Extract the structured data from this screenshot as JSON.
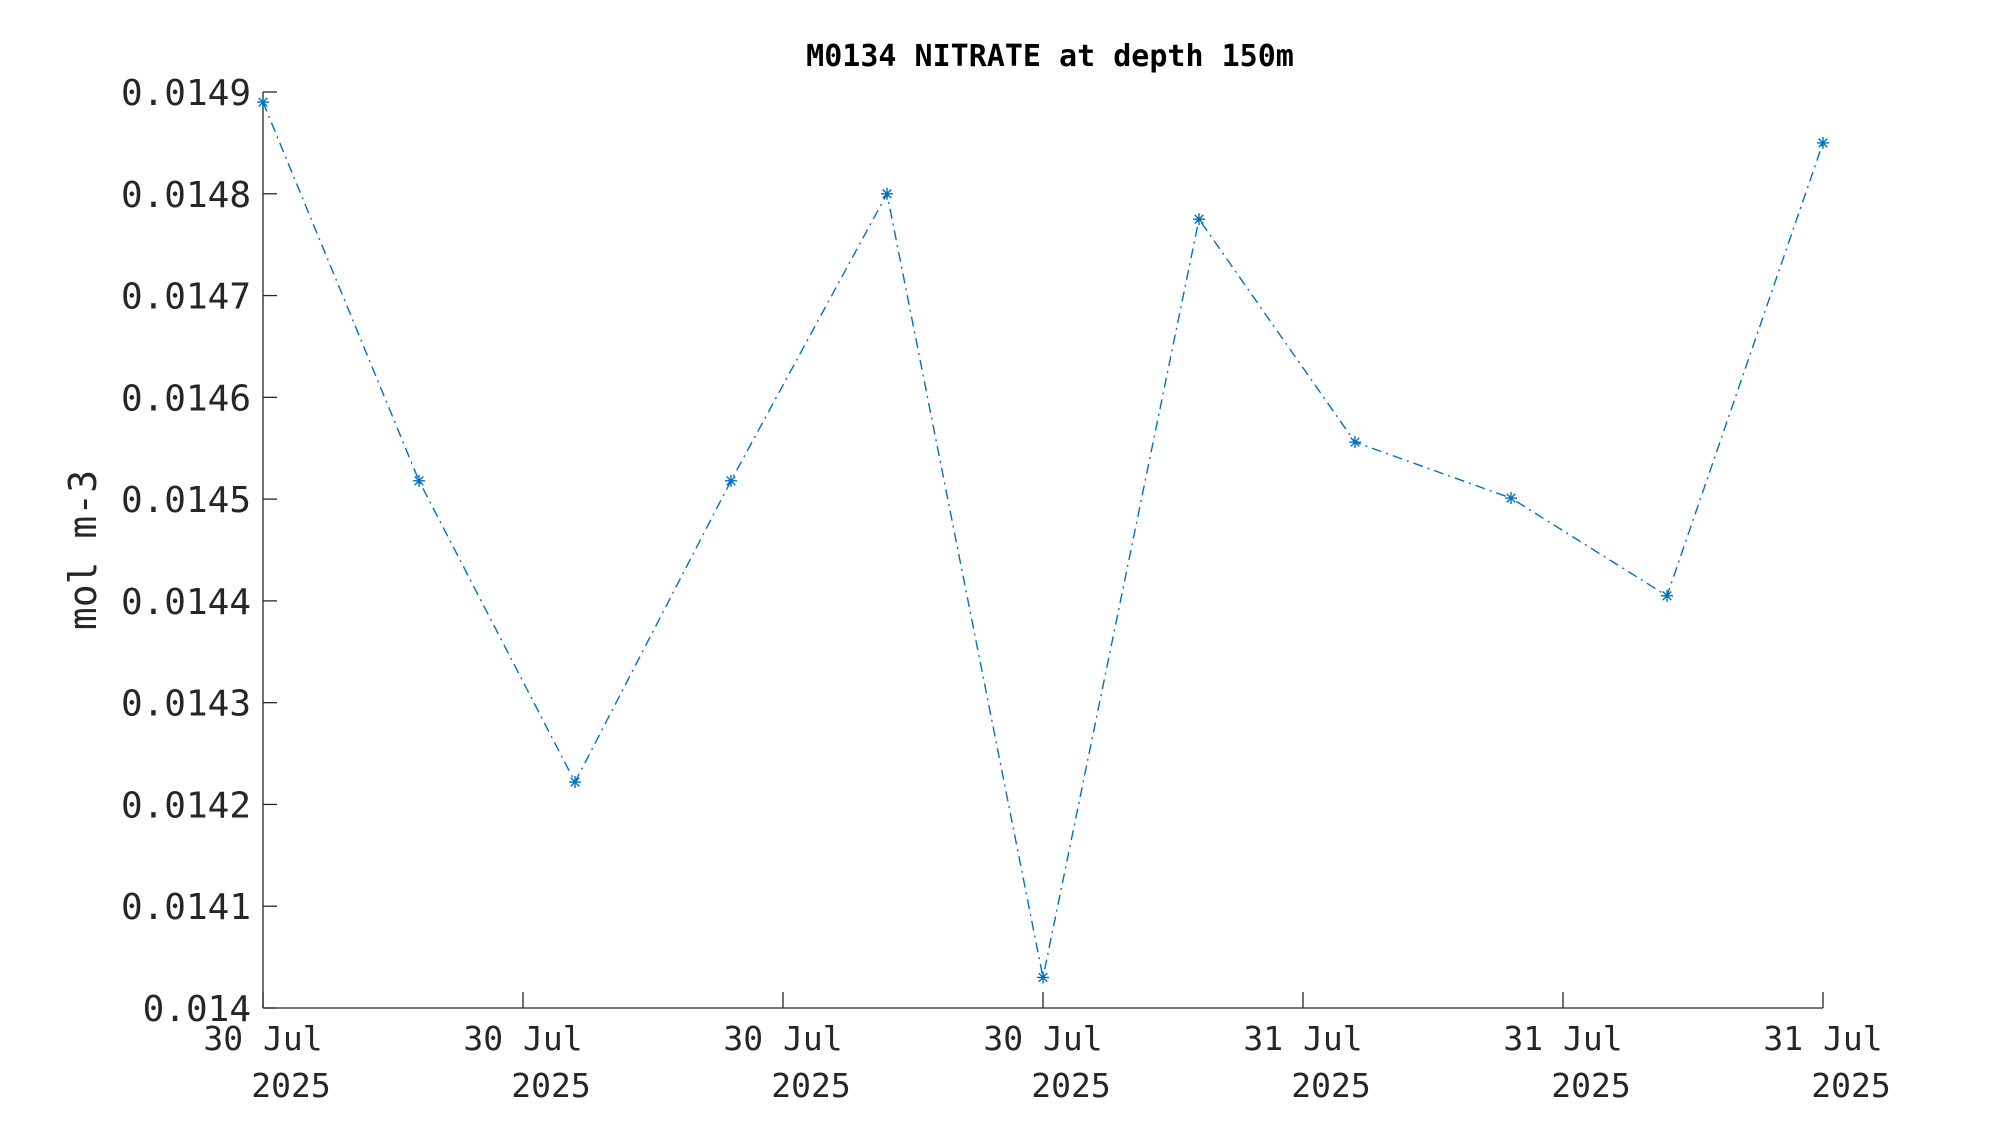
{
  "chart_data": {
    "type": "line",
    "title": "M0134 NITRATE at depth 150m",
    "xlabel": "",
    "ylabel": "mol m-3",
    "ylim": [
      0.014,
      0.0149
    ],
    "xlim": [
      0,
      6
    ],
    "grid": false,
    "legend": "none",
    "line_style": "dash-dot",
    "marker": "asterisk",
    "series_color": "#0072BD",
    "yticks": [
      "0.014",
      "0.0141",
      "0.0142",
      "0.0143",
      "0.0144",
      "0.0145",
      "0.0146",
      "0.0147",
      "0.0148",
      "0.0149"
    ],
    "xticks": [
      {
        "x": 0,
        "line1": "30 Jul",
        "line2": "2025"
      },
      {
        "x": 1,
        "line1": "30 Jul",
        "line2": "2025"
      },
      {
        "x": 2,
        "line1": "30 Jul",
        "line2": "2025"
      },
      {
        "x": 3,
        "line1": "30 Jul",
        "line2": "2025"
      },
      {
        "x": 4,
        "line1": "31 Jul",
        "line2": "2025"
      },
      {
        "x": 5,
        "line1": "31 Jul",
        "line2": "2025"
      },
      {
        "x": 6,
        "line1": "31 Jul",
        "line2": "2025"
      }
    ],
    "series": [
      {
        "x": [
          0,
          0.6,
          1.2,
          1.8,
          2.4,
          3.0,
          3.6,
          4.2,
          4.8,
          5.4,
          6.0
        ],
        "values": [
          0.01489,
          0.014518,
          0.014222,
          0.014518,
          0.0148,
          0.01403,
          0.014775,
          0.014556,
          0.014501,
          0.014405,
          0.01485
        ]
      }
    ]
  }
}
